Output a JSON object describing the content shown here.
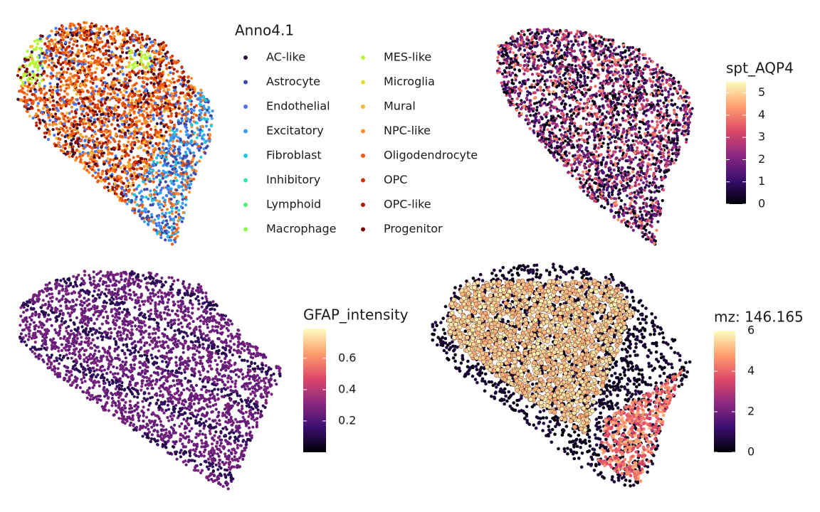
{
  "chart_data": [
    {
      "type": "scatter",
      "legend": {
        "title": "Anno4.1",
        "items": [
          {
            "name": "AC-like",
            "color": "#30123b"
          },
          {
            "name": "Astrocyte",
            "color": "#3e4aa5"
          },
          {
            "name": "Endothelial",
            "color": "#4777ef"
          },
          {
            "name": "Excitatory",
            "color": "#3a9ef2"
          },
          {
            "name": "Fibroblast",
            "color": "#1fc8de"
          },
          {
            "name": "Inhibitory",
            "color": "#2ee8a5"
          },
          {
            "name": "Lymphoid",
            "color": "#4df47a"
          },
          {
            "name": "Macrophage",
            "color": "#8cfa4a"
          },
          {
            "name": "MES-like",
            "color": "#b7f735"
          },
          {
            "name": "Microglia",
            "color": "#e1dd37"
          },
          {
            "name": "Mural",
            "color": "#f8b731"
          },
          {
            "name": "NPC-like",
            "color": "#fb8c29"
          },
          {
            "name": "Oligodendrocyte",
            "color": "#ef5a11"
          },
          {
            "name": "OPC",
            "color": "#d23105"
          },
          {
            "name": "OPC-like",
            "color": "#a81601"
          },
          {
            "name": "Progenitor",
            "color": "#7a0403"
          }
        ]
      }
    },
    {
      "type": "scatter",
      "colorbar": {
        "title": "spt_AQP4",
        "lim": [
          0,
          5.5
        ],
        "ticks": [
          0,
          1,
          2,
          3,
          4,
          5
        ],
        "colors": [
          "#000004",
          "#3b0f70",
          "#8c2981",
          "#de4968",
          "#fe9f6d",
          "#fcfdbf"
        ]
      }
    },
    {
      "type": "scatter",
      "colorbar": {
        "title": "GFAP_intensity",
        "lim": [
          0,
          0.79
        ],
        "ticks": [
          0.2,
          0.4,
          0.6
        ],
        "colors": [
          "#000004",
          "#3b0f70",
          "#8c2981",
          "#de4968",
          "#fe9f6d",
          "#fcfdbf"
        ]
      }
    },
    {
      "type": "scatter",
      "colorbar": {
        "title": "mz: 146.165",
        "lim": [
          0,
          6
        ],
        "ticks": [
          0,
          2,
          4,
          6
        ],
        "colors": [
          "#000004",
          "#3b0f70",
          "#8c2981",
          "#de4968",
          "#fe9f6d",
          "#fcfdbf"
        ]
      }
    }
  ]
}
